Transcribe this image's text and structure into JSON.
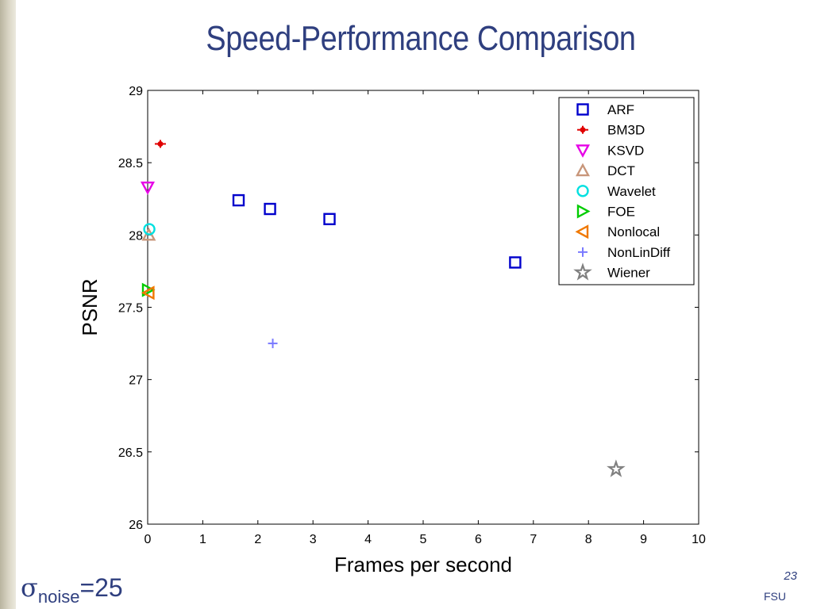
{
  "slide": {
    "title": "Speed-Performance Comparison",
    "noise_symbol": "σ",
    "noise_sub": "noise",
    "noise_value": "=25",
    "page_number": "23",
    "footer": "FSU",
    "title_color": "#2f3f7f"
  },
  "chart_data": {
    "type": "scatter",
    "title": "",
    "xlabel": "Frames per second",
    "ylabel": "PSNR",
    "xlim": [
      0,
      10
    ],
    "ylim": [
      26,
      29
    ],
    "xticks": [
      0,
      1,
      2,
      3,
      4,
      5,
      6,
      7,
      8,
      9,
      10
    ],
    "yticks": [
      26,
      26.5,
      27,
      27.5,
      28,
      28.5,
      29
    ],
    "ytick_labels": [
      "26",
      "26.5",
      "27",
      "27.5",
      "28",
      "28.5",
      "29"
    ],
    "grid": false,
    "legend_position": "top-right",
    "series": [
      {
        "name": "ARF",
        "marker": "square",
        "color": "#0000cc",
        "points": [
          [
            1.65,
            28.24
          ],
          [
            2.22,
            28.18
          ],
          [
            3.3,
            28.11
          ],
          [
            6.67,
            27.81
          ]
        ]
      },
      {
        "name": "BM3D",
        "marker": "star-small",
        "color": "#e00000",
        "points": [
          [
            0.23,
            28.63
          ]
        ]
      },
      {
        "name": "KSVD",
        "marker": "triangle-down",
        "color": "#e600e6",
        "points": [
          [
            0.0,
            28.33
          ]
        ]
      },
      {
        "name": "DCT",
        "marker": "triangle-up",
        "color": "#c8967a",
        "points": [
          [
            0.02,
            28.0
          ]
        ]
      },
      {
        "name": "Wavelet",
        "marker": "circle",
        "color": "#00e0e0",
        "points": [
          [
            0.03,
            28.04
          ]
        ]
      },
      {
        "name": "FOE",
        "marker": "triangle-right",
        "color": "#00cc00",
        "points": [
          [
            0.0,
            27.62
          ]
        ]
      },
      {
        "name": "Nonlocal",
        "marker": "triangle-left",
        "color": "#f07800",
        "points": [
          [
            0.02,
            27.6
          ]
        ]
      },
      {
        "name": "NonLinDiff",
        "marker": "plus",
        "color": "#7a7aff",
        "points": [
          [
            2.27,
            27.25
          ]
        ]
      },
      {
        "name": "Wiener",
        "marker": "star",
        "color": "#808080",
        "points": [
          [
            8.5,
            26.38
          ]
        ]
      }
    ]
  }
}
